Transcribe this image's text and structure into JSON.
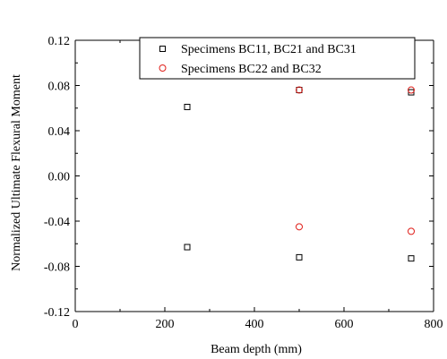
{
  "chart_data": {
    "type": "scatter",
    "title": "",
    "xlabel": "Beam depth (mm)",
    "ylabel": "Normalized Ultimate Flexural Moment",
    "xlim": [
      0,
      800
    ],
    "ylim": [
      -0.12,
      0.12
    ],
    "x_ticks": [
      0,
      200,
      400,
      600,
      800
    ],
    "x_tick_labels": [
      "0",
      "200",
      "400",
      "600",
      "800"
    ],
    "y_ticks": [
      -0.12,
      -0.08,
      -0.04,
      0.0,
      0.04,
      0.08,
      0.12
    ],
    "y_tick_labels": [
      "-0.12",
      "-0.08",
      "-0.04",
      "0.00",
      "0.04",
      "0.08",
      "0.12"
    ],
    "grid": false,
    "legend_position": "top-right",
    "series": [
      {
        "name": "Specimens BC11, BC21 and BC31",
        "marker": "open-square",
        "color": "#000000",
        "points": [
          {
            "x": 250,
            "y": 0.061
          },
          {
            "x": 500,
            "y": 0.076
          },
          {
            "x": 750,
            "y": 0.074
          },
          {
            "x": 250,
            "y": -0.063
          },
          {
            "x": 500,
            "y": -0.072
          },
          {
            "x": 750,
            "y": -0.073
          }
        ]
      },
      {
        "name": "Specimens BC22 and BC32",
        "marker": "open-circle",
        "color": "#e0201b",
        "points": [
          {
            "x": 500,
            "y": 0.076
          },
          {
            "x": 750,
            "y": 0.076
          },
          {
            "x": 500,
            "y": -0.045
          },
          {
            "x": 750,
            "y": -0.049
          }
        ]
      }
    ]
  }
}
